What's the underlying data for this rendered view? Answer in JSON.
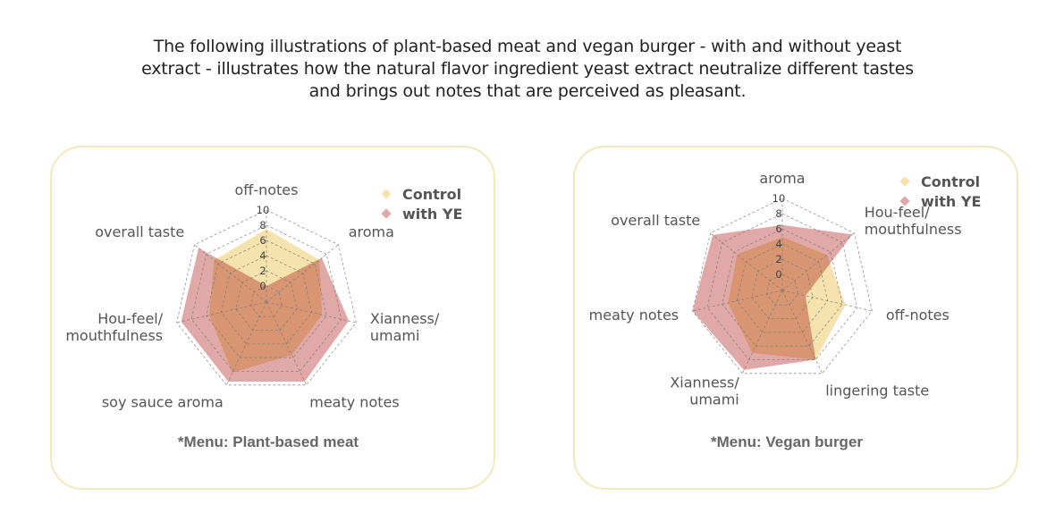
{
  "intro_text": "The following illustrations of plant-based meat and vegan burger - with and without yeast extract - illustrates how the natural flavor ingredient yeast extract neutralize different tastes and brings out notes that are perceived as pleasant.",
  "colors": {
    "control": "#f5e2ac",
    "with_ye": "#e0a9a8",
    "panel_border": "#f3e8bd"
  },
  "chart_data": [
    {
      "type": "radar",
      "caption": "*Menu: Plant-based meat",
      "axes": [
        "off-notes",
        "aroma",
        "Xianness/\numami",
        "meaty notes",
        "soy sauce aroma",
        "Hou-feel/\nmouthfulness",
        "overall taste"
      ],
      "ticks": [
        "0",
        "2",
        "4",
        "6",
        "8",
        "10"
      ],
      "range": [
        0,
        10
      ],
      "grid": true,
      "legend": "top-right",
      "series": [
        {
          "name": "Control",
          "values": [
            7.5,
            6.8,
            5.4,
            5.6,
            8.2,
            5.6,
            6.7
          ]
        },
        {
          "name": "with YE",
          "values": [
            0,
            7.2,
            9.0,
            9.5,
            9.5,
            9.4,
            9.3
          ]
        }
      ]
    },
    {
      "type": "radar",
      "caption": "*Menu: Vegan burger",
      "axes": [
        "aroma",
        "Hou-feel/\nmouthfulness",
        "off-notes",
        "lingering taste",
        "Xianness/\numami",
        "meaty notes",
        "overall taste"
      ],
      "ticks": [
        "0",
        "2",
        "4",
        "6",
        "8",
        "10"
      ],
      "range": [
        0,
        10
      ],
      "grid": true,
      "legend": "top-right",
      "series": [
        {
          "name": "Control",
          "values": [
            4.9,
            5.4,
            6.4,
            8.0,
            7.0,
            5.2,
            5.5
          ]
        },
        {
          "name": "with YE",
          "values": [
            6.5,
            9.7,
            1.0,
            8.0,
            9.5,
            10.0,
            9.6
          ]
        }
      ]
    }
  ]
}
